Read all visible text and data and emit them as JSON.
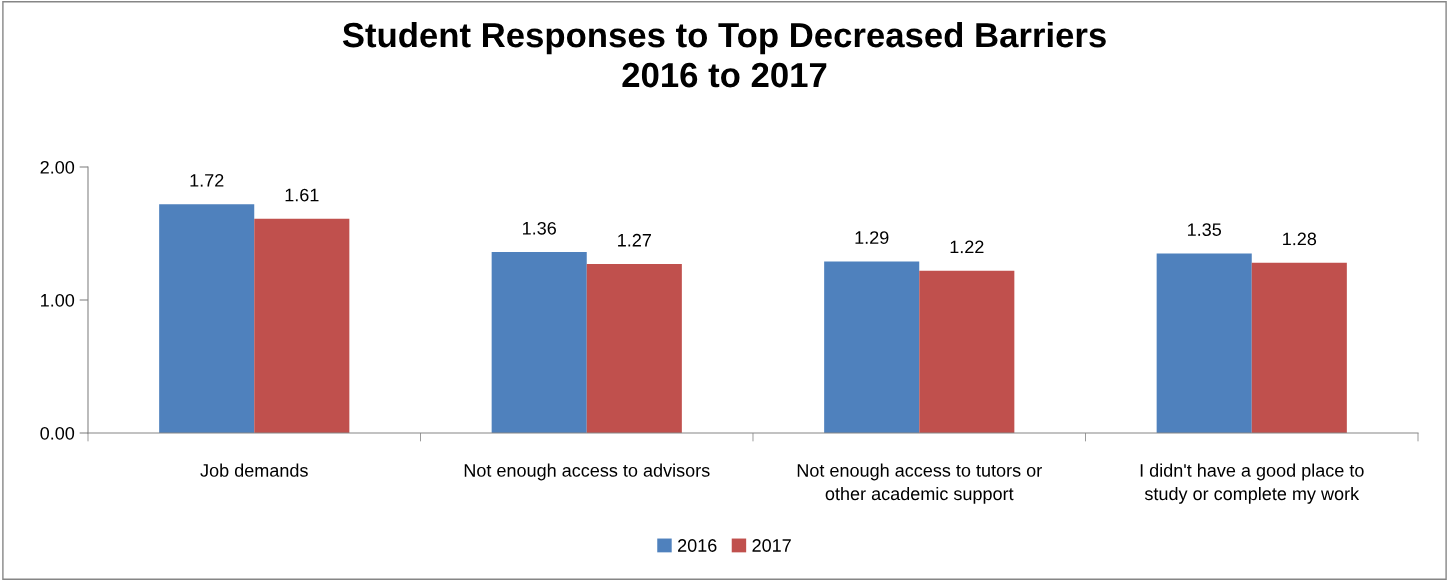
{
  "chart_data": {
    "type": "bar",
    "title": "Student Responses to Top Decreased Barriers\n2016 to 2017",
    "categories": [
      "Job demands",
      "Not enough access to advisors",
      "Not enough access to tutors or\nother academic support",
      "I didn't have a good place to\nstudy or complete my work"
    ],
    "series": [
      {
        "name": "2016",
        "color": "#4f81bd",
        "values": [
          1.72,
          1.36,
          1.29,
          1.35
        ]
      },
      {
        "name": "2017",
        "color": "#c0504d",
        "values": [
          1.61,
          1.27,
          1.22,
          1.28
        ]
      }
    ],
    "ylim": [
      0,
      2
    ],
    "yticks": [
      {
        "value": 0,
        "label": "0.00"
      },
      {
        "value": 1,
        "label": "1.00"
      },
      {
        "value": 2,
        "label": "2.00"
      }
    ],
    "data_labels": true,
    "grid": false,
    "legend": "bottom"
  }
}
